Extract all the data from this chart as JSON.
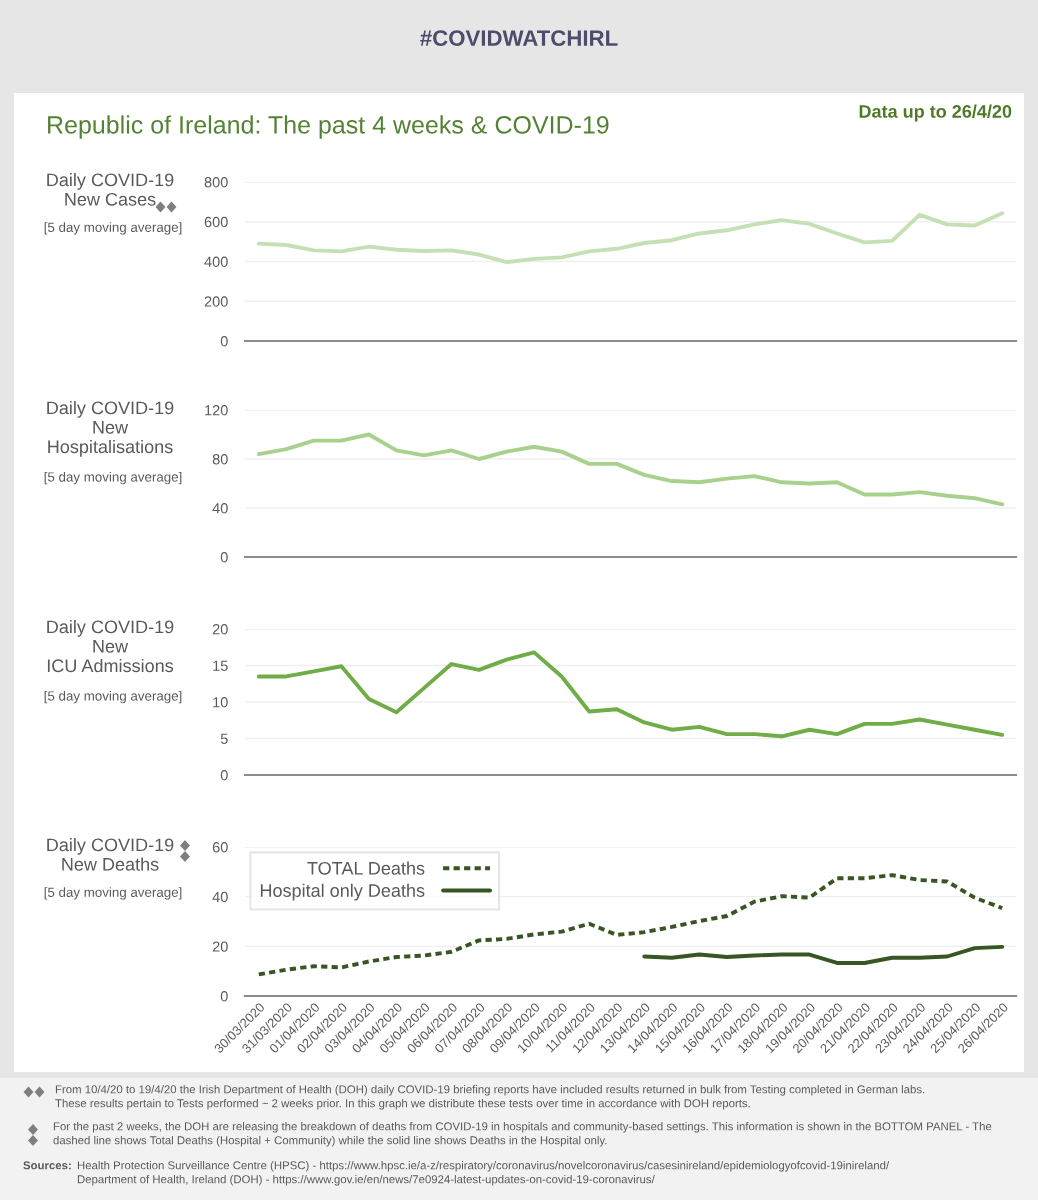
{
  "chart_data": [
    {
      "type": "line",
      "title": "Republic of Ireland: The past 4 weeks & COVID-19",
      "ylabel": "Daily COVID-19\nNew Cases",
      "annotations": [
        "[5 day moving average]",
        "#COVIDWATCHIRL",
        "Data up to 26/4/20"
      ],
      "categories": [
        null,
        null,
        null,
        null,
        null,
        null,
        null,
        null,
        null,
        null,
        null,
        null,
        null,
        null,
        null,
        null,
        null,
        null,
        null,
        null,
        null,
        null,
        null,
        null,
        null,
        null,
        null,
        null
      ],
      "values": [
        490,
        483,
        456,
        451,
        475,
        459,
        453,
        456,
        435,
        397,
        413,
        421,
        451,
        464,
        493,
        507,
        541,
        557,
        587,
        608,
        589,
        541,
        496,
        504,
        635,
        587,
        581,
        643
      ],
      "color": "#c5e0b4",
      "ylim": [
        0,
        800
      ],
      "yticks": [
        0,
        200,
        400,
        600,
        800
      ],
      "grid": "y"
    },
    {
      "type": "line",
      "ylabel": "Daily COVID-19\nNew\nHospitalisations",
      "annotations": [
        "[5 day moving average]"
      ],
      "categories": [
        null,
        null,
        null,
        null,
        null,
        null,
        null,
        null,
        null,
        null,
        null,
        null,
        null,
        null,
        null,
        null,
        null,
        null,
        null,
        null,
        null,
        null,
        null,
        null,
        null,
        null,
        null,
        null
      ],
      "values": [
        84,
        88,
        95,
        95,
        100,
        87,
        83,
        87,
        80,
        86,
        90,
        86,
        76,
        76,
        67,
        62,
        61,
        64,
        66,
        61,
        60,
        61,
        51,
        51,
        53,
        50,
        48,
        43
      ],
      "color": "#a9d18e",
      "ylim": [
        0,
        120
      ],
      "yticks": [
        0,
        40,
        80,
        120
      ],
      "grid": "y"
    },
    {
      "type": "line",
      "ylabel": "Daily COVID-19\nNew\nICU Admissions",
      "annotations": [
        "[5 day moving average]"
      ],
      "categories": [
        null,
        null,
        null,
        null,
        null,
        null,
        null,
        null,
        null,
        null,
        null,
        null,
        null,
        null,
        null,
        null,
        null,
        null,
        null,
        null,
        null,
        null,
        null,
        null,
        null,
        null,
        null,
        null
      ],
      "values": [
        13.5,
        13.5,
        14.2,
        14.9,
        10.4,
        8.6,
        11.9,
        15.2,
        14.4,
        15.8,
        16.8,
        13.5,
        8.7,
        9.0,
        7.2,
        6.2,
        6.6,
        5.6,
        5.6,
        5.3,
        6.2,
        5.6,
        7.0,
        7.0,
        7.6,
        6.9,
        6.2,
        5.5
      ],
      "color": "#70ad47",
      "ylim": [
        0,
        20
      ],
      "yticks": [
        0,
        5,
        10,
        15,
        20
      ],
      "grid": "y"
    },
    {
      "type": "line",
      "ylabel": "Daily COVID-19\nNew Deaths",
      "annotations": [
        "[5 day moving average]",
        "From 10/4/20 to 19/4/20 the Irish Department of Health (DOH) daily COVID-19 briefing reports have included results returned in bulk from Testing completed in German labs.\nThese results pertain to Tests performed ~ 2 weeks prior. In this graph we distribute these tests over time in accordance with DOH reports.",
        "For the past 2 weeks, the DOH are releasing the breakdown of deaths from COVID-19 in hospitals and community-based settings. This information is shown in the BOTTOM PANEL - The\ndashed line shows Total Deaths (Hospital + Community) while the solid line shows Deaths in the Hospital only.",
        "Sources:",
        "Health Protection Surveillance Centre (HPSC) - https://www.hpsc.ie/a-z/respiratory/coronavirus/novelcoronavirus/casesinireland/epidemiologyofcovid-19inireland/\nDepartment of Health, Ireland (DOH) - https://www.gov.ie/en/news/7e0924-latest-updates-on-covid-19-coronavirus/"
      ],
      "categories": [
        "30/03/2020",
        "31/03/2020",
        "01/04/2020",
        "02/04/2020",
        "03/04/2020",
        "04/04/2020",
        "05/04/2020",
        "06/04/2020",
        "07/04/2020",
        "08/04/2020",
        "09/04/2020",
        "10/04/2020",
        "11/04/2020",
        "12/04/2020",
        "13/04/2020",
        "14/04/2020",
        "15/04/2020",
        "16/04/2020",
        "17/04/2020",
        "18/04/2020",
        "19/04/2020",
        "20/04/2020",
        "21/04/2020",
        "22/04/2020",
        "23/04/2020",
        "24/04/2020",
        "25/04/2020",
        "26/04/2020"
      ],
      "series": [
        {
          "name": "TOTAL Deaths",
          "color": "#375623",
          "line_style": "dashed",
          "values": [
            8.7,
            10.6,
            12,
            11.5,
            13.9,
            15.7,
            16.3,
            17.8,
            22.4,
            23,
            24.8,
            25.9,
            29.1,
            24.6,
            25.7,
            27.8,
            30.2,
            32.2,
            38,
            40.2,
            39.6,
            47.4,
            47.4,
            48.7,
            46.7,
            46.1,
            39.6,
            35.4
          ]
        },
        {
          "name": "Hospital only Deaths",
          "color": "#375623",
          "line_style": "solid",
          "values": [
            null,
            null,
            null,
            null,
            null,
            null,
            null,
            null,
            null,
            null,
            null,
            null,
            null,
            null,
            15.9,
            15.4,
            16.7,
            15.7,
            16.3,
            16.7,
            16.7,
            13.3,
            13.3,
            15.4,
            15.4,
            15.9,
            19.3,
            19.8
          ]
        }
      ],
      "ylim": [
        0,
        60
      ],
      "yticks": [
        0,
        20,
        40,
        60
      ],
      "grid": "y",
      "legend": "top left"
    }
  ]
}
